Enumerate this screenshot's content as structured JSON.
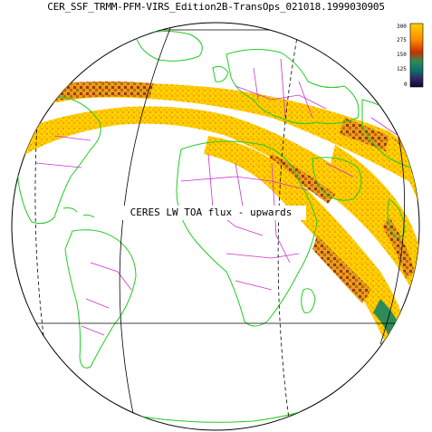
{
  "title": "CER_SSF_TRMM-PFM-VIRS_Edition2B-TransOps_021018.1999030905",
  "map_label": "CERES LW TOA flux - upwards",
  "colorbar": {
    "ticks": [
      "300",
      "275",
      "150",
      "125",
      "0"
    ],
    "colors": [
      "#ffd300",
      "#ff8c00",
      "#c83200",
      "#2e8b57",
      "#0b6c6c",
      "#3a2060",
      "#08083a"
    ]
  },
  "colors": {
    "background": "#ffffff",
    "coastline": "#22cc22",
    "borders": "#cc33cc",
    "grid": "#000000",
    "swath_main": "#ffd200",
    "swath_hot": "#c83200"
  }
}
